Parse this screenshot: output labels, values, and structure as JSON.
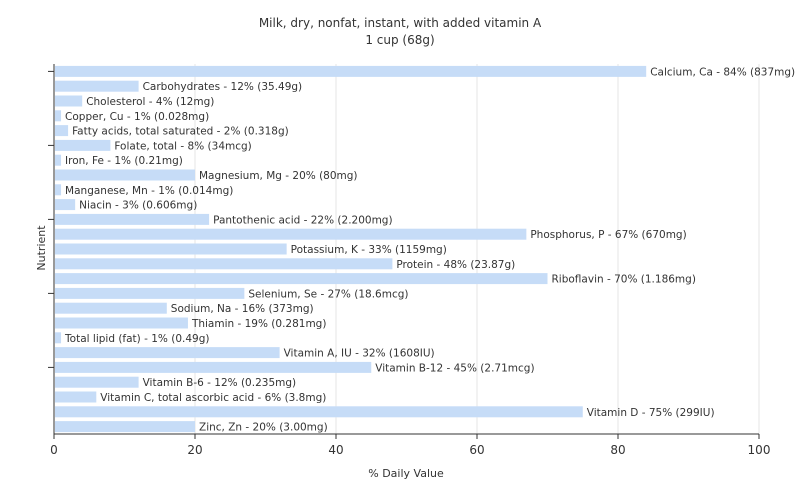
{
  "chart_data": {
    "type": "bar",
    "orientation": "horizontal",
    "title": "Milk, dry, nonfat, instant, with added vitamin A",
    "subtitle": "1 cup (68g)",
    "xlabel": "% Daily Value",
    "ylabel": "Nutrient",
    "xlim": [
      0,
      100
    ],
    "x_ticks": [
      "0",
      "20",
      "40",
      "60",
      "80",
      "100"
    ],
    "grid": true,
    "bar_color": "#c6dcf7",
    "categories": [
      "Calcium, Ca",
      "Carbohydrates",
      "Cholesterol",
      "Copper, Cu",
      "Fatty acids, total saturated",
      "Folate, total",
      "Iron, Fe",
      "Magnesium, Mg",
      "Manganese, Mn",
      "Niacin",
      "Pantothenic acid",
      "Phosphorus, P",
      "Potassium, K",
      "Protein",
      "Riboflavin",
      "Selenium, Se",
      "Sodium, Na",
      "Thiamin",
      "Total lipid (fat)",
      "Vitamin A, IU",
      "Vitamin B-12",
      "Vitamin B-6",
      "Vitamin C, total ascorbic acid",
      "Vitamin D",
      "Zinc, Zn"
    ],
    "values": [
      84,
      12,
      4,
      1,
      2,
      8,
      1,
      20,
      1,
      3,
      22,
      67,
      33,
      48,
      70,
      27,
      16,
      19,
      1,
      32,
      45,
      12,
      6,
      75,
      20
    ],
    "labels": [
      "Calcium, Ca - 84% (837mg)",
      "Carbohydrates - 12% (35.49g)",
      "Cholesterol - 4% (12mg)",
      "Copper, Cu - 1% (0.028mg)",
      "Fatty acids, total saturated - 2% (0.318g)",
      "Folate, total - 8% (34mcg)",
      "Iron, Fe - 1% (0.21mg)",
      "Magnesium, Mg - 20% (80mg)",
      "Manganese, Mn - 1% (0.014mg)",
      "Niacin - 3% (0.606mg)",
      "Pantothenic acid - 22% (2.200mg)",
      "Phosphorus, P - 67% (670mg)",
      "Potassium, K - 33% (1159mg)",
      "Protein - 48% (23.87g)",
      "Riboflavin - 70% (1.186mg)",
      "Selenium, Se - 27% (18.6mcg)",
      "Sodium, Na - 16% (373mg)",
      "Thiamin - 19% (0.281mg)",
      "Total lipid (fat) - 1% (0.49g)",
      "Vitamin A, IU - 32% (1608IU)",
      "Vitamin B-12 - 45% (2.71mcg)",
      "Vitamin B-6 - 12% (0.235mg)",
      "Vitamin C, total ascorbic acid - 6% (3.8mg)",
      "Vitamin D - 75% (299IU)",
      "Zinc, Zn - 20% (3.00mg)"
    ]
  }
}
